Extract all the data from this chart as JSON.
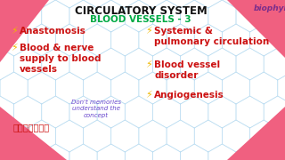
{
  "background_color": "#ffffff",
  "pink_color": "#f06080",
  "title": "CIRCULATORY SYSTEM",
  "subtitle": "BLOOD VESSELS - 3",
  "title_color": "#111111",
  "subtitle_color": "#00aa44",
  "brand": "biophyll",
  "brand_color": "#7b2d8b",
  "left_items": [
    {
      "icon": "⚡",
      "text": "Anastomosis"
    },
    {
      "icon": "⚡",
      "text": "Blood & nerve\nsupply to blood\nvessels"
    }
  ],
  "right_items": [
    {
      "icon": "⚡",
      "text": "Systemic &\npulmonary circulation"
    },
    {
      "icon": "⚡",
      "text": "Blood vessel\ndisorder"
    },
    {
      "icon": "⚡",
      "text": "Angiogenesis"
    }
  ],
  "icon_color": "#f0b800",
  "item_color": "#cc1111",
  "tamil_text": "தமிழில்",
  "tamil_color": "#cc1111",
  "note_text": "Don't memories\nunderstand the\nconcept",
  "note_color": "#6644cc",
  "hex_line_color": "#a8d4ee"
}
